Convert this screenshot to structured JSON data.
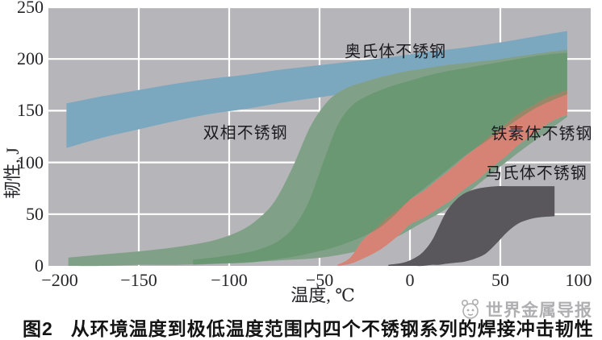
{
  "figure": {
    "caption_label": "图2",
    "caption_title": "从环境温度到极低温度范围内四个不锈钢系列的焊接冲击韧性"
  },
  "watermark": {
    "text": "世界金属导报",
    "icon": "panda-logo",
    "color": "#a9a9ab"
  },
  "chart_data": {
    "type": "area",
    "subtype": "band-ranges",
    "xlabel": "温度, ℃",
    "ylabel": "韧性, J",
    "xlim": [
      -200,
      100
    ],
    "ylim": [
      0,
      250
    ],
    "grid": true,
    "plot_bg": "#b6b5ba",
    "gridline_color": "#ffffff",
    "xticks": [
      -200,
      -150,
      -100,
      -50,
      0,
      50,
      100
    ],
    "xtick_labels": [
      "−200",
      "−150",
      "−100",
      "−50",
      "0",
      "50",
      "100"
    ],
    "yticks": [
      0,
      50,
      100,
      150,
      200,
      250
    ],
    "ytick_labels": [
      "0",
      "50",
      "100",
      "150",
      "200",
      "250"
    ],
    "series": [
      {
        "name": "奥氏体不锈钢",
        "key": "austenitic",
        "color": "#7ba8be",
        "opacity": 1,
        "mask": true,
        "x": [
          -190,
          -170,
          -150,
          -130,
          -110,
          -90,
          -70,
          -50,
          -30,
          -10,
          10,
          30,
          50,
          70,
          87
        ],
        "lower": [
          114,
          124,
          132,
          140,
          147,
          152,
          158,
          163,
          168,
          173,
          179,
          184,
          190,
          195,
          198
        ],
        "upper": [
          157,
          164,
          170,
          176,
          181,
          185,
          190,
          194,
          198,
          202,
          207,
          211,
          216,
          222,
          227
        ]
      },
      {
        "name": "双相不锈钢(范围)",
        "key": "duplex-outer",
        "color": "#4f8f58",
        "opacity": 0.52,
        "mask": true,
        "x": [
          -189,
          -170,
          -150,
          -130,
          -110,
          -95,
          -85,
          -75,
          -65,
          -55,
          -45,
          -35,
          -25,
          -15,
          -5,
          5,
          20,
          35,
          50,
          65,
          87
        ],
        "lower": [
          0,
          0,
          1,
          1,
          2,
          3,
          4,
          5,
          6,
          7,
          9,
          12,
          16,
          22,
          30,
          40,
          55,
          75,
          96,
          116,
          144
        ],
        "upper": [
          8,
          11,
          14,
          18,
          24,
          33,
          44,
          62,
          95,
          135,
          160,
          172,
          178,
          183,
          187,
          190,
          194,
          197,
          200,
          204,
          209
        ]
      },
      {
        "name": "铁素体不锈钢",
        "key": "ferritic",
        "color": "#d68275",
        "opacity": 1,
        "mask": true,
        "x": [
          -40,
          -33,
          -26,
          -19,
          -13,
          -6,
          0,
          8,
          15,
          23,
          30,
          38,
          45,
          53,
          60,
          68,
          75,
          81,
          87
        ],
        "lower": [
          0,
          2,
          7,
          13,
          20,
          30,
          40,
          47,
          55,
          64,
          74,
          84,
          95,
          106,
          117,
          127,
          136,
          142,
          146
        ],
        "upper": [
          1,
          8,
          25,
          36,
          46,
          55,
          64,
          73,
          83,
          94,
          105,
          116,
          127,
          137,
          147,
          155,
          162,
          166,
          170
        ]
      },
      {
        "name": "双相不锈钢(核心)",
        "key": "duplex-inner",
        "color": "#4f8f58",
        "opacity": 0.45,
        "mask": false,
        "x": [
          -120,
          -105,
          -90,
          -80,
          -72,
          -64,
          -56,
          -48,
          -40,
          -32,
          -24,
          -16,
          -8,
          0,
          10,
          20,
          30,
          40,
          50,
          60,
          70,
          80,
          87
        ],
        "lower": [
          1,
          2,
          3,
          5,
          7,
          9,
          12,
          15,
          19,
          24,
          30,
          38,
          50,
          64,
          78,
          92,
          106,
          118,
          130,
          142,
          153,
          161,
          166
        ],
        "upper": [
          6,
          9,
          13,
          18,
          25,
          38,
          62,
          100,
          136,
          155,
          164,
          170,
          175,
          179,
          184,
          188,
          191,
          194,
          197,
          200,
          203,
          205,
          206
        ]
      },
      {
        "name": "马氏体不锈钢",
        "key": "martensitic",
        "color": "#59575b",
        "opacity": 1,
        "mask": true,
        "x": [
          -12,
          -4,
          2,
          7,
          12,
          16,
          20,
          25,
          30,
          36,
          42,
          48,
          54,
          60,
          66,
          72,
          80
        ],
        "lower": [
          0,
          0,
          0,
          0,
          1,
          1,
          2,
          3,
          4,
          7,
          12,
          22,
          33,
          41,
          45,
          47,
          48
        ],
        "upper": [
          1,
          3,
          7,
          13,
          24,
          38,
          52,
          63,
          70,
          74,
          76,
          77,
          77,
          77,
          77,
          77,
          77
        ]
      }
    ],
    "annotations": [
      {
        "text": "奥氏体不锈钢",
        "t": -8,
        "j": 209
      },
      {
        "text": "双相不锈钢",
        "t": -91,
        "j": 130
      },
      {
        "text": "铁素体不锈钢",
        "t": 73,
        "j": 129
      },
      {
        "text": "马氏体不锈钢",
        "t": 70,
        "j": 91
      }
    ]
  }
}
